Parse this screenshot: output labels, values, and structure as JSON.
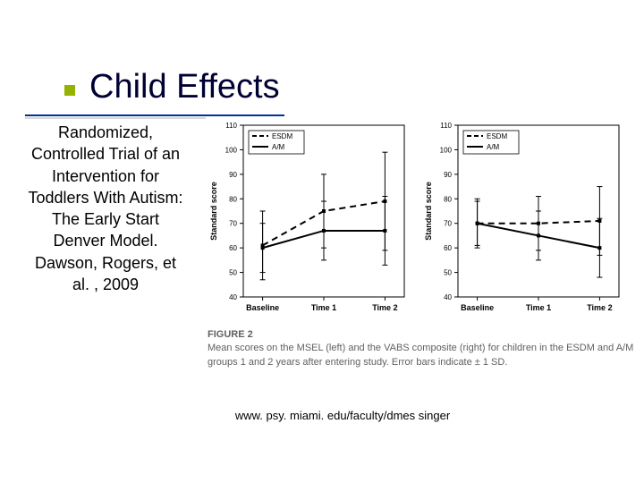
{
  "title": "Child Effects",
  "subtitle": "Randomized, Controlled Trial of an Intervention for Toddlers With Autism: The Early Start Denver Model. Dawson, Rogers, et al. , 2009",
  "footer": "www. psy. miami. edu/faculty/dmes singer",
  "figure": {
    "label": "FIGURE 2",
    "caption": "Mean scores on the MSEL (left) and the VABS composite (right) for children in the ESDM and A/M groups 1 and 2 years after entering study. Error bars indicate ± 1 SD."
  },
  "colors": {
    "title_color": "#000033",
    "bullet_color": "#94b200",
    "underline_color": "#003399",
    "background": "#ffffff",
    "caption_color": "#606060",
    "chart_line_color": "#000000"
  },
  "chart_left": {
    "type": "line",
    "ylabel": "Standard score",
    "x_categories": [
      "Baseline",
      "Time 1",
      "Time 2"
    ],
    "ylim": [
      40,
      110
    ],
    "yticks": [
      40,
      50,
      60,
      70,
      80,
      90,
      100,
      110
    ],
    "series": [
      {
        "name": "ESDM",
        "dash": "dashed",
        "values": [
          61,
          75,
          79
        ],
        "err": [
          14,
          15,
          20
        ]
      },
      {
        "name": "A/M",
        "dash": "solid",
        "values": [
          60,
          67,
          67
        ],
        "err": [
          10,
          12,
          14
        ]
      }
    ],
    "legend_items": [
      "ESDM",
      "A/M"
    ],
    "axis_fontsize": 9,
    "tick_fontsize": 8,
    "line_width": 2,
    "err_cap_width": 6
  },
  "chart_right": {
    "type": "line",
    "ylabel": "Standard score",
    "x_categories": [
      "Baseline",
      "Time 1",
      "Time 2"
    ],
    "ylim": [
      40,
      110
    ],
    "yticks": [
      40,
      50,
      60,
      70,
      80,
      90,
      100,
      110
    ],
    "series": [
      {
        "name": "ESDM",
        "dash": "dashed",
        "values": [
          70,
          70,
          71
        ],
        "err": [
          10,
          11,
          14
        ]
      },
      {
        "name": "A/M",
        "dash": "solid",
        "values": [
          70,
          65,
          60
        ],
        "err": [
          9,
          10,
          12
        ]
      }
    ],
    "legend_items": [
      "ESDM",
      "A/M"
    ],
    "axis_fontsize": 9,
    "tick_fontsize": 8,
    "line_width": 2,
    "err_cap_width": 6
  }
}
